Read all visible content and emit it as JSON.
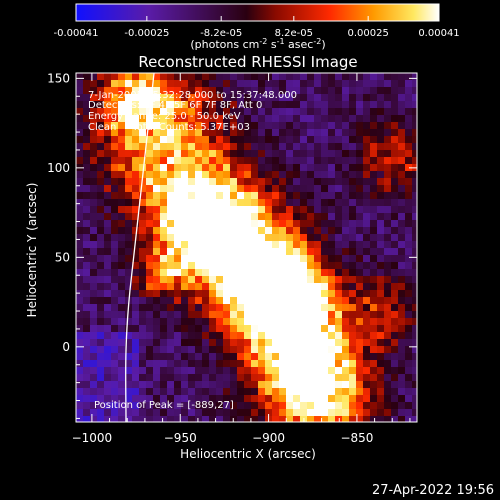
{
  "colorbar": {
    "tick_labels": [
      "-0.00041",
      "-0.00025",
      "-8.2e-05",
      "8.2e-05",
      "0.00025",
      "0.00041"
    ],
    "unit_label": "(photons cm",
    "unit_exp1": "-2",
    "unit_mid1": " s",
    "unit_exp2": "-1",
    "unit_mid2": " asec",
    "unit_exp3": "-2",
    "unit_end": ")",
    "colors": [
      "#1010ff",
      "#5a1ca8",
      "#2a0010",
      "#8a0a00",
      "#ff2a00",
      "#ff9a00",
      "#ffe860",
      "#ffffff"
    ]
  },
  "chart_data": {
    "type": "heatmap",
    "title": "Reconstructed RHESSI Image",
    "xlabel": "Heliocentric X (arcsec)",
    "ylabel": "Heliocentric Y (arcsec)",
    "xlim": [
      -1009,
      -816
    ],
    "ylim": [
      -42,
      153
    ],
    "xticks": [
      -1000,
      -950,
      -900,
      -850
    ],
    "yticks": [
      0,
      50,
      100,
      150
    ],
    "peak_position": [
      -889,
      27
    ],
    "limb_label": "",
    "info_lines": [
      "7-Jan-2005 15:32:28.000 to 15:37:48.000",
      "Detectors: 3F 4F 5F 6F 7F 8F, Att 0",
      "Energy Range: 25.0 - 50.0 keV",
      "Clean     Total Counts: 5.37E+03"
    ],
    "peak_text": "Position of Peak = [-889,27]"
  },
  "footer": {
    "date": "27-Apr-2022 19:56"
  }
}
